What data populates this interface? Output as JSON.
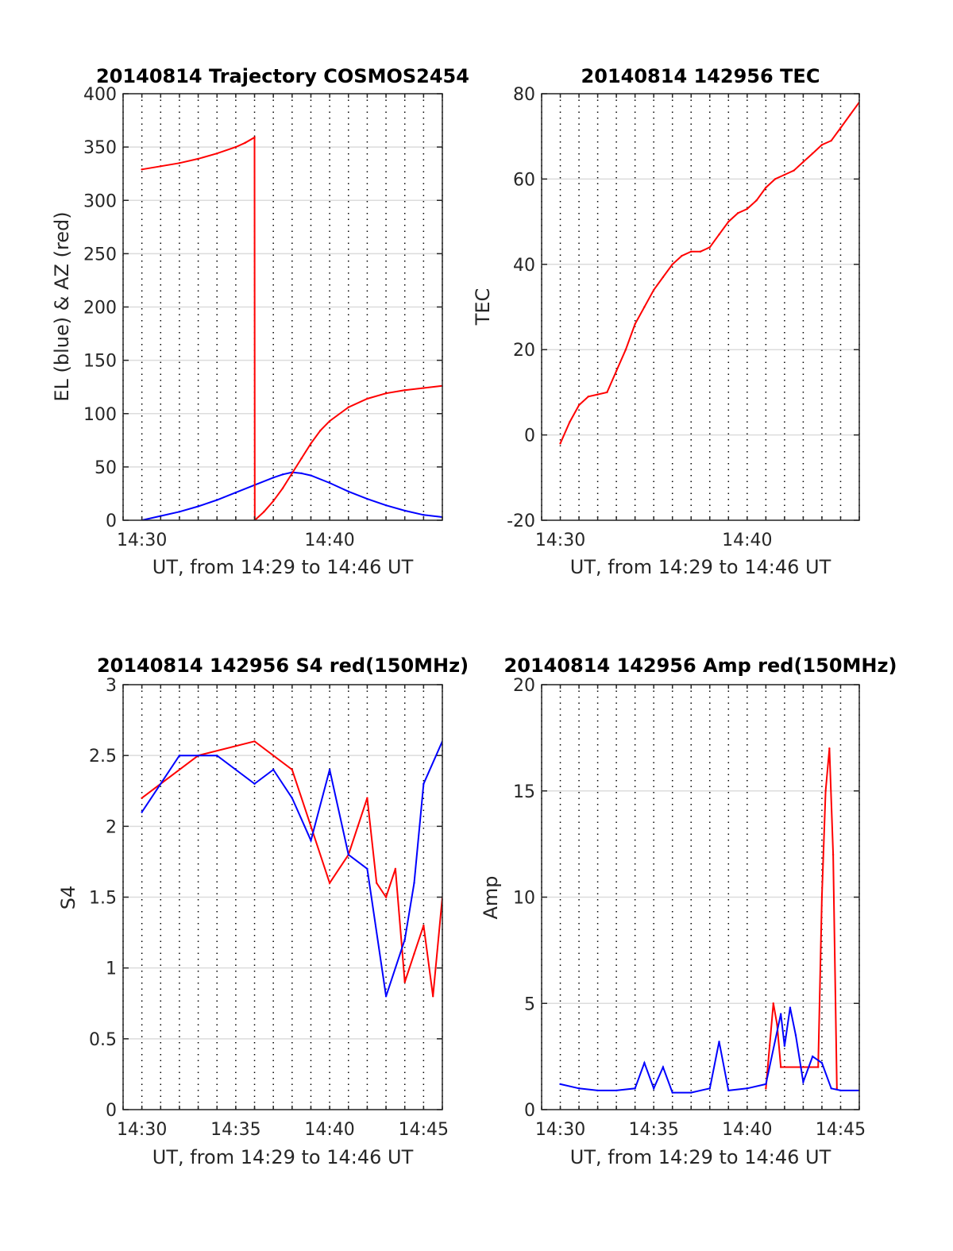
{
  "colors": {
    "el": "#0000ff",
    "az": "#ff0000",
    "tec": "#ff0000",
    "s4_red": "#ff0000",
    "s4_blue": "#0000ff",
    "amp_red": "#ff0000",
    "amp_blue": "#0000ff",
    "grid": "#000000"
  },
  "chart_data": [
    {
      "type": "line",
      "title": "20140814 Trajectory COSMOS2454",
      "xlabel": "UT, from 14:29 to 14:46 UT",
      "ylabel": "EL (blue) & AZ (red)",
      "x_ticks": [
        "14:30",
        "14:40"
      ],
      "y_ticks": [
        "0",
        "50",
        "100",
        "150",
        "200",
        "250",
        "300",
        "350",
        "400"
      ],
      "xlim_minutes": [
        29,
        46
      ],
      "ylim": [
        0,
        400
      ],
      "grid": "dotted vertical every minute, horizontal at ticks",
      "series": [
        {
          "color": "blue",
          "x_minutes": [
            30,
            31,
            32,
            33,
            34,
            35,
            36,
            37,
            37.5,
            38,
            38.5,
            39,
            40,
            41,
            42,
            43,
            44,
            45,
            46
          ],
          "values": [
            0,
            4,
            8,
            13,
            19,
            26,
            33,
            40,
            43,
            45,
            44,
            42,
            35,
            27,
            20,
            14,
            9,
            5,
            3
          ]
        },
        {
          "color": "red",
          "x_minutes": [
            30,
            31,
            32,
            33,
            34,
            35,
            35.5,
            36,
            36.01,
            36.5,
            37,
            37.5,
            38,
            38.5,
            39,
            39.5,
            40,
            41,
            42,
            43,
            44,
            45,
            46
          ],
          "values": [
            329,
            332,
            335,
            339,
            344,
            350,
            354,
            359,
            0,
            8,
            18,
            30,
            44,
            58,
            72,
            84,
            93,
            106,
            114,
            119,
            122,
            124,
            126
          ]
        }
      ]
    },
    {
      "type": "line",
      "title": "20140814 142956 TEC",
      "xlabel": "UT, from 14:29 to 14:46 UT",
      "ylabel": "TEC",
      "x_ticks": [
        "14:30",
        "14:40"
      ],
      "y_ticks": [
        "-20",
        "0",
        "20",
        "40",
        "60",
        "80"
      ],
      "xlim_minutes": [
        29,
        46
      ],
      "ylim": [
        -20,
        80
      ],
      "series": [
        {
          "color": "red",
          "x_minutes": [
            30,
            30.5,
            31,
            31.5,
            32,
            32.5,
            33,
            33.5,
            34,
            34.5,
            35,
            35.5,
            36,
            36.5,
            37,
            37.5,
            38,
            38.5,
            39,
            39.5,
            40,
            40.5,
            41,
            41.5,
            42,
            42.5,
            43,
            43.5,
            44,
            44.5,
            45,
            45.5,
            46
          ],
          "values": [
            -2,
            3,
            7,
            9,
            9.5,
            10,
            15,
            20,
            26,
            30,
            34,
            37,
            40,
            42,
            43,
            43,
            44,
            47,
            50,
            52,
            53,
            55,
            58,
            60,
            61,
            62,
            64,
            66,
            68,
            69,
            72,
            75,
            78
          ]
        }
      ]
    },
    {
      "type": "line",
      "title": "20140814 142956 S4 red(150MHz)",
      "xlabel": "UT, from 14:29 to 14:46 UT",
      "ylabel": "S4",
      "x_ticks": [
        "14:30",
        "14:35",
        "14:40",
        "14:45"
      ],
      "y_ticks": [
        "0",
        "0.5",
        "1",
        "1.5",
        "2",
        "2.5",
        "3"
      ],
      "xlim_minutes": [
        29,
        46
      ],
      "ylim": [
        0,
        3
      ],
      "series": [
        {
          "color": "red",
          "x_minutes": [
            30,
            33,
            36,
            38,
            39,
            40,
            41,
            41.5,
            42,
            42.5,
            43,
            43.5,
            44,
            44.5,
            45,
            45.5,
            46
          ],
          "values": [
            2.2,
            2.5,
            2.6,
            2.4,
            2.0,
            1.6,
            1.8,
            2.0,
            2.2,
            1.6,
            1.5,
            1.7,
            0.9,
            1.1,
            1.3,
            0.8,
            1.5
          ]
        },
        {
          "color": "blue",
          "x_minutes": [
            30,
            32,
            34,
            36,
            37,
            38,
            39,
            40,
            41,
            42,
            43,
            44,
            44.5,
            45,
            46
          ],
          "values": [
            2.1,
            2.5,
            2.5,
            2.3,
            2.4,
            2.2,
            1.9,
            2.4,
            1.8,
            1.7,
            0.8,
            1.2,
            1.6,
            2.3,
            2.6
          ]
        }
      ]
    },
    {
      "type": "line",
      "title": "20140814 142956 Amp red(150MHz)",
      "xlabel": "UT, from 14:29 to 14:46 UT",
      "ylabel": "Amp",
      "x_ticks": [
        "14:30",
        "14:35",
        "14:40",
        "14:45"
      ],
      "y_ticks": [
        "0",
        "5",
        "10",
        "15",
        "20"
      ],
      "xlim_minutes": [
        29,
        46
      ],
      "ylim": [
        0,
        20
      ],
      "series": [
        {
          "color": "red",
          "x_minutes": [
            41.0,
            41.2,
            41.4,
            41.6,
            41.8,
            43.8,
            44.0,
            44.2,
            44.4,
            44.6,
            44.8
          ],
          "values": [
            1,
            3,
            5,
            4,
            2,
            2,
            10,
            15,
            17,
            12,
            1
          ]
        },
        {
          "color": "blue",
          "x_minutes": [
            30,
            31,
            32,
            33,
            34,
            34.5,
            35,
            35.5,
            36,
            37,
            38,
            38.5,
            39,
            40,
            41,
            41.8,
            42,
            42.3,
            42.6,
            43,
            43.5,
            44,
            44.5,
            45,
            46
          ],
          "values": [
            1.2,
            1.0,
            0.9,
            0.9,
            1.0,
            2.2,
            1.0,
            2.0,
            0.8,
            0.8,
            1.0,
            3.2,
            0.9,
            1.0,
            1.2,
            4.5,
            3.0,
            4.8,
            3.5,
            1.3,
            2.5,
            2.2,
            1.0,
            0.9,
            0.9
          ]
        }
      ]
    }
  ]
}
